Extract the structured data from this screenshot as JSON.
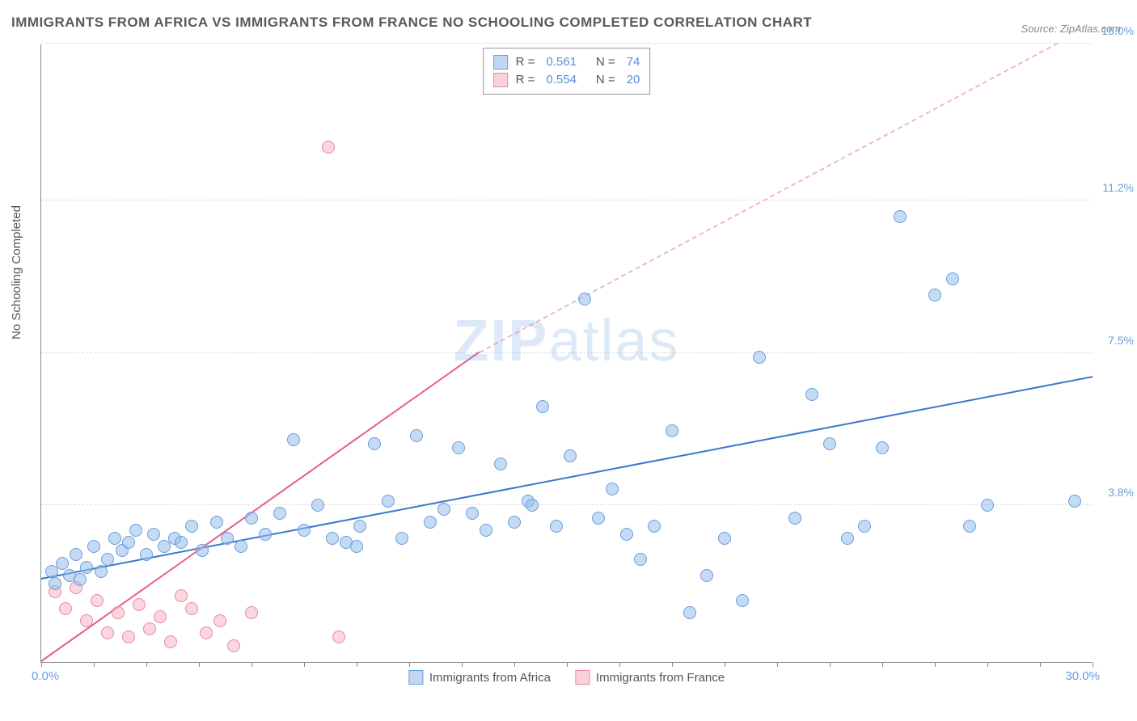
{
  "title": "IMMIGRANTS FROM AFRICA VS IMMIGRANTS FROM FRANCE NO SCHOOLING COMPLETED CORRELATION CHART",
  "source": "Source: ZipAtlas.com",
  "ylabel": "No Schooling Completed",
  "watermark_bold": "ZIP",
  "watermark_light": "atlas",
  "chart": {
    "type": "scatter-correlation",
    "xlim": [
      0,
      30
    ],
    "ylim": [
      0,
      15
    ],
    "x_start_label": "0.0%",
    "x_end_label": "30.0%",
    "x_ticks_pct": [
      0,
      5,
      10,
      15,
      20,
      25,
      30,
      35,
      40,
      45,
      50,
      55,
      60,
      65,
      70,
      75,
      80,
      85,
      90,
      95,
      100
    ],
    "gridlines_y": [
      3.8,
      7.5,
      11.2,
      15.0
    ],
    "gridline_labels": [
      "3.8%",
      "7.5%",
      "11.2%",
      "15.0%"
    ],
    "background_color": "#ffffff",
    "grid_color": "#dddddd",
    "axis_color": "#888888",
    "point_radius": 8,
    "series": {
      "africa": {
        "label": "Immigrants from Africa",
        "color_fill": "rgba(150,190,235,0.55)",
        "color_stroke": "#6a9ddc",
        "R": 0.561,
        "N": 74,
        "trend": {
          "x1": 0,
          "y1": 2.0,
          "x2": 30,
          "y2": 6.9,
          "color": "#3a77cc",
          "dashed": false
        },
        "points": [
          [
            0.3,
            2.2
          ],
          [
            0.4,
            1.9
          ],
          [
            0.6,
            2.4
          ],
          [
            0.8,
            2.1
          ],
          [
            1.0,
            2.6
          ],
          [
            1.1,
            2.0
          ],
          [
            1.3,
            2.3
          ],
          [
            1.5,
            2.8
          ],
          [
            1.7,
            2.2
          ],
          [
            1.9,
            2.5
          ],
          [
            2.1,
            3.0
          ],
          [
            2.3,
            2.7
          ],
          [
            2.5,
            2.9
          ],
          [
            2.7,
            3.2
          ],
          [
            3.0,
            2.6
          ],
          [
            3.2,
            3.1
          ],
          [
            3.5,
            2.8
          ],
          [
            3.8,
            3.0
          ],
          [
            4.0,
            2.9
          ],
          [
            4.3,
            3.3
          ],
          [
            4.6,
            2.7
          ],
          [
            5.0,
            3.4
          ],
          [
            5.3,
            3.0
          ],
          [
            5.7,
            2.8
          ],
          [
            6.0,
            3.5
          ],
          [
            6.4,
            3.1
          ],
          [
            6.8,
            3.6
          ],
          [
            7.2,
            5.4
          ],
          [
            7.5,
            3.2
          ],
          [
            7.9,
            3.8
          ],
          [
            8.3,
            3.0
          ],
          [
            8.7,
            2.9
          ],
          [
            9.1,
            3.3
          ],
          [
            9.5,
            5.3
          ],
          [
            9.9,
            3.9
          ],
          [
            10.3,
            3.0
          ],
          [
            10.7,
            5.5
          ],
          [
            11.1,
            3.4
          ],
          [
            11.5,
            3.7
          ],
          [
            11.9,
            5.2
          ],
          [
            12.3,
            3.6
          ],
          [
            12.7,
            3.2
          ],
          [
            13.1,
            4.8
          ],
          [
            13.5,
            3.4
          ],
          [
            13.9,
            3.9
          ],
          [
            14.3,
            6.2
          ],
          [
            14.7,
            3.3
          ],
          [
            15.1,
            5.0
          ],
          [
            15.5,
            8.8
          ],
          [
            15.9,
            3.5
          ],
          [
            16.3,
            4.2
          ],
          [
            16.7,
            3.1
          ],
          [
            17.1,
            2.5
          ],
          [
            17.5,
            3.3
          ],
          [
            18.0,
            5.6
          ],
          [
            18.5,
            1.2
          ],
          [
            19.0,
            2.1
          ],
          [
            19.5,
            3.0
          ],
          [
            20.0,
            1.5
          ],
          [
            20.5,
            7.4
          ],
          [
            21.5,
            3.5
          ],
          [
            22.0,
            6.5
          ],
          [
            22.5,
            5.3
          ],
          [
            23.5,
            3.3
          ],
          [
            24.0,
            5.2
          ],
          [
            24.5,
            10.8
          ],
          [
            25.5,
            8.9
          ],
          [
            26.0,
            9.3
          ],
          [
            26.5,
            3.3
          ],
          [
            27.0,
            3.8
          ],
          [
            23.0,
            3.0
          ],
          [
            14.0,
            3.8
          ],
          [
            9.0,
            2.8
          ],
          [
            29.5,
            3.9
          ]
        ]
      },
      "france": {
        "label": "Immigrants from France",
        "color_fill": "rgba(245,180,195,0.55)",
        "color_stroke": "#e68aa0",
        "R": 0.554,
        "N": 20,
        "trend_solid": {
          "x1": 0,
          "y1": 0.0,
          "x2": 12.5,
          "y2": 7.5,
          "color": "#e85d8a"
        },
        "trend_dashed": {
          "x1": 12.5,
          "y1": 7.5,
          "x2": 29,
          "y2": 15.0,
          "color": "#f0b8c8"
        },
        "points": [
          [
            0.4,
            1.7
          ],
          [
            0.7,
            1.3
          ],
          [
            1.0,
            1.8
          ],
          [
            1.3,
            1.0
          ],
          [
            1.6,
            1.5
          ],
          [
            1.9,
            0.7
          ],
          [
            2.2,
            1.2
          ],
          [
            2.5,
            0.6
          ],
          [
            2.8,
            1.4
          ],
          [
            3.1,
            0.8
          ],
          [
            3.4,
            1.1
          ],
          [
            3.7,
            0.5
          ],
          [
            4.0,
            1.6
          ],
          [
            4.3,
            1.3
          ],
          [
            4.7,
            0.7
          ],
          [
            5.1,
            1.0
          ],
          [
            5.5,
            0.4
          ],
          [
            6.0,
            1.2
          ],
          [
            8.5,
            0.6
          ],
          [
            8.2,
            12.5
          ]
        ]
      }
    }
  },
  "legend_top": {
    "r_label": "R  =",
    "n_label": "N  ="
  }
}
